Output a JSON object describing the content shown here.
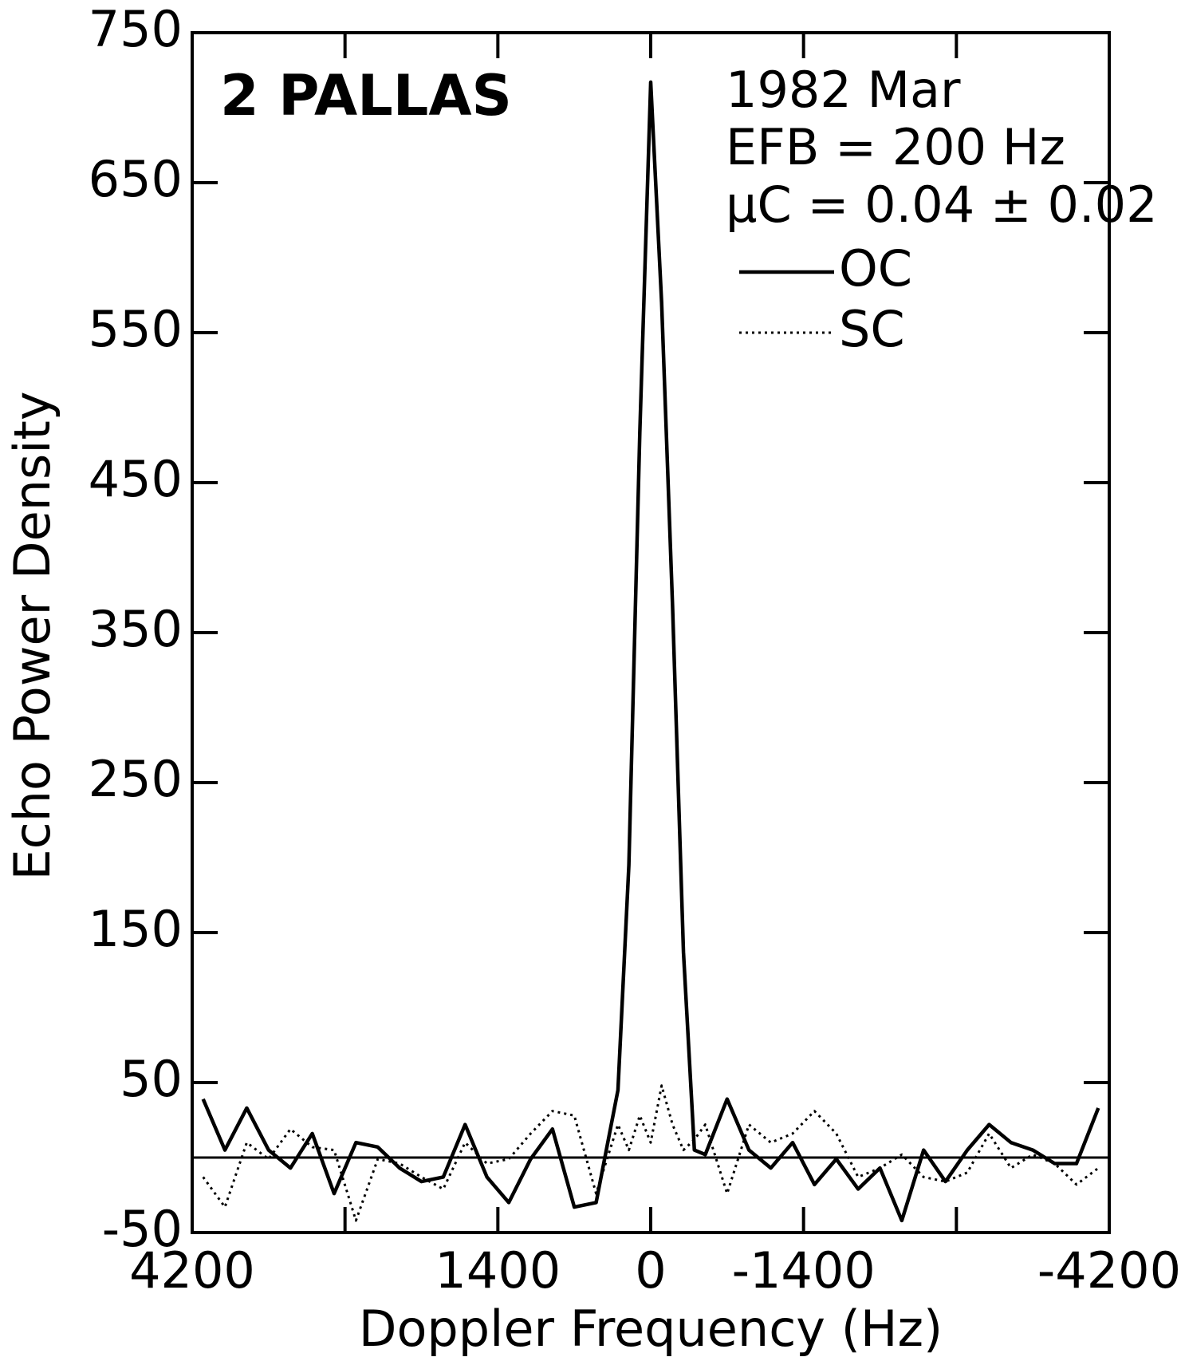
{
  "chart_data": {
    "type": "line",
    "title": "2 PALLAS",
    "annotations": [
      "1982 Mar",
      "EFB = 200 Hz",
      "μC = 0.04 ± 0.02"
    ],
    "x_label": "Doppler Frequency (Hz)",
    "y_label": "Echo Power Density",
    "x": [
      4100,
      3900,
      3700,
      3500,
      3300,
      3100,
      2900,
      2700,
      2500,
      2300,
      2100,
      1900,
      1700,
      1500,
      1300,
      1100,
      900,
      700,
      500,
      300,
      200,
      100,
      0,
      -100,
      -200,
      -300,
      -400,
      -500,
      -700,
      -900,
      -1100,
      -1300,
      -1500,
      -1700,
      -1900,
      -2100,
      -2300,
      -2500,
      -2700,
      -2900,
      -3100,
      -3300,
      -3500,
      -3700,
      -3900,
      -4100
    ],
    "series": [
      {
        "name": "OC",
        "color": "#000000",
        "style": "solid",
        "values": [
          39,
          5,
          33,
          5,
          -7,
          16,
          -24,
          10,
          7,
          -7,
          -16,
          -13,
          22,
          -13,
          -30,
          -1,
          19,
          -33,
          -30,
          45,
          195,
          483,
          717,
          570,
          368,
          137,
          5,
          2,
          39,
          5,
          -7,
          10,
          -18,
          -1,
          -21,
          -7,
          -42,
          5,
          -16,
          5,
          22,
          10,
          5,
          -4,
          -4,
          33
        ]
      },
      {
        "name": "SC",
        "color": "#000000",
        "style": "dotted",
        "values": [
          -13,
          -33,
          10,
          -1,
          19,
          7,
          5,
          -42,
          -1,
          -4,
          -13,
          -21,
          10,
          -4,
          -1,
          16,
          31,
          28,
          -24,
          22,
          5,
          28,
          10,
          48,
          22,
          5,
          12,
          22,
          -24,
          22,
          10,
          16,
          31,
          16,
          -13,
          -7,
          2,
          -13,
          -16,
          -10,
          16,
          -7,
          2,
          -4,
          -18,
          -7
        ]
      }
    ],
    "reference_line": 0,
    "xlim": [
      4200,
      -4200
    ],
    "xticks": [
      4200,
      {
        "value": 2800,
        "label": null
      },
      1400,
      0,
      -1400,
      {
        "value": -2800,
        "label": null
      },
      -4200
    ],
    "ylim": [
      -50,
      750
    ],
    "yticks": [
      -50,
      50,
      150,
      250,
      350,
      450,
      550,
      650,
      750
    ]
  }
}
